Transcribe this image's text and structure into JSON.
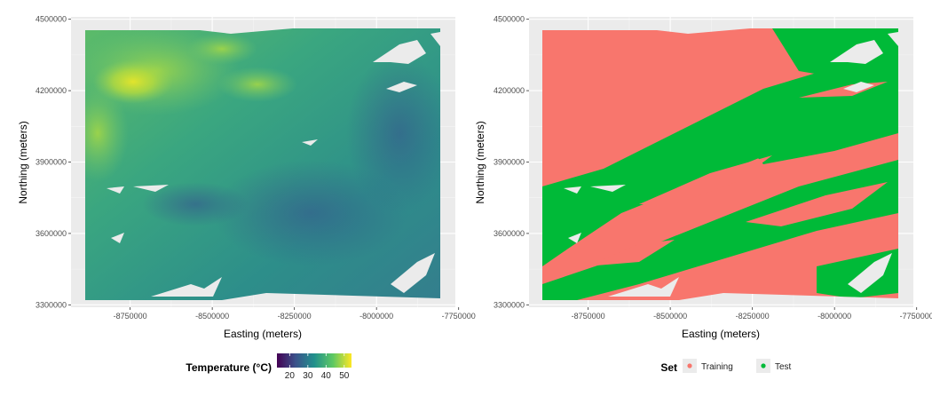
{
  "chart_data": [
    {
      "type": "heatmap",
      "panel": "left",
      "xlabel": "Easting (meters)",
      "ylabel": "Northing (meters)",
      "xlim": [
        -8930000,
        -7760000
      ],
      "ylim": [
        3290000,
        4510000
      ],
      "x_ticks": [
        -8750000,
        -8500000,
        -8250000,
        -8000000,
        -7750000
      ],
      "x_tick_labels": [
        "-8750000",
        "-8500000",
        "-8250000",
        "-8000000",
        "-7750000"
      ],
      "y_ticks": [
        3300000,
        3600000,
        3900000,
        4200000,
        4500000
      ],
      "y_tick_labels": [
        "3300000",
        "3600000",
        "3900000",
        "4200000",
        "4500000"
      ],
      "grid": true,
      "colorbar": {
        "title": "Temperature (°C)",
        "range": [
          13,
          54
        ],
        "ticks": [
          20,
          30,
          40,
          50
        ],
        "tick_labels": [
          "20",
          "30",
          "40",
          "50"
        ],
        "palette": [
          "#440154",
          "#3b528b",
          "#21908c",
          "#5dc863",
          "#fde725"
        ],
        "position": "bottom"
      }
    },
    {
      "type": "scatter",
      "panel": "right",
      "xlabel": "Easting (meters)",
      "ylabel": "Northing (meters)",
      "xlim": [
        -8930000,
        -7760000
      ],
      "ylim": [
        3290000,
        4510000
      ],
      "x_ticks": [
        -8750000,
        -8500000,
        -8250000,
        -8000000,
        -7750000
      ],
      "x_tick_labels": [
        "-8750000",
        "-8500000",
        "-8250000",
        "-8000000",
        "-7750000"
      ],
      "y_ticks": [
        3300000,
        3600000,
        3900000,
        4200000,
        4500000
      ],
      "y_tick_labels": [
        "3300000",
        "3600000",
        "3900000",
        "4200000",
        "4500000"
      ],
      "grid": true,
      "legend": {
        "title": "Set",
        "position": "bottom",
        "entries": [
          {
            "label": "Training",
            "color": "#f8766d"
          },
          {
            "label": "Test",
            "color": "#00ba38"
          }
        ]
      }
    }
  ]
}
